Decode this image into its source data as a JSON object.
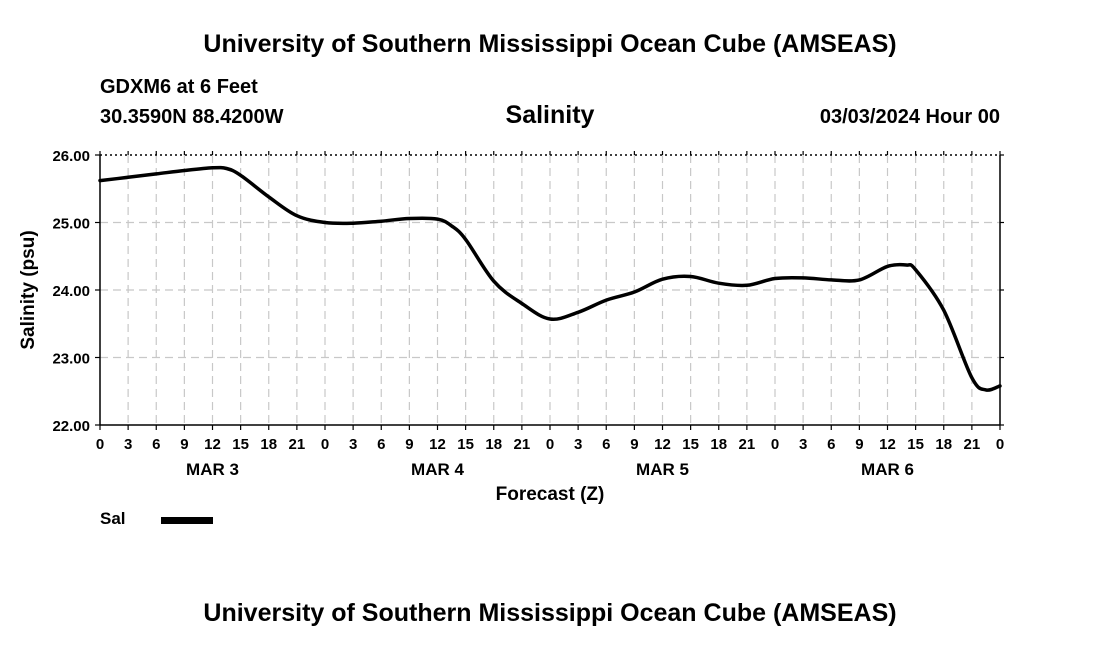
{
  "header": {
    "title_top": "University of Southern Mississippi Ocean Cube (AMSEAS)",
    "station": "GDXM6 at 6 Feet",
    "coords": "30.3590N  88.4200W",
    "subtitle": "Salinity",
    "datetime": "03/03/2024 Hour 00",
    "title_bottom": "University of Southern Mississippi Ocean Cube (AMSEAS)"
  },
  "legend": {
    "label": "Sal"
  },
  "chart_data": {
    "type": "line",
    "xlabel": "Forecast (Z)",
    "ylabel": "Salinity (psu)",
    "x_unit": "forecast hour",
    "xlim": [
      0,
      96
    ],
    "ylim": [
      22,
      26
    ],
    "grid": true,
    "yticks": [
      22,
      23,
      24,
      25,
      26
    ],
    "ytick_labels": [
      "22.00",
      "23.00",
      "24.00",
      "25.00",
      "26.00"
    ],
    "xtick_hours": [
      0,
      3,
      6,
      9,
      12,
      15,
      18,
      21,
      24,
      27,
      30,
      33,
      36,
      39,
      42,
      45,
      48,
      51,
      54,
      57,
      60,
      63,
      66,
      69,
      72,
      75,
      78,
      81,
      84,
      87,
      90,
      93,
      96
    ],
    "xtick_labels": [
      "0",
      "3",
      "6",
      "9",
      "12",
      "15",
      "18",
      "21",
      "0",
      "3",
      "6",
      "9",
      "12",
      "15",
      "18",
      "21",
      "0",
      "3",
      "6",
      "9",
      "12",
      "15",
      "18",
      "21",
      "0",
      "3",
      "6",
      "9",
      "12",
      "15",
      "18",
      "21",
      "0"
    ],
    "day_labels": [
      {
        "hour": 12,
        "label": "MAR 3"
      },
      {
        "hour": 36,
        "label": "MAR 4"
      },
      {
        "hour": 60,
        "label": "MAR 5"
      },
      {
        "hour": 84,
        "label": "MAR 6"
      }
    ],
    "series": [
      {
        "name": "Sal",
        "color": "#000000",
        "x": [
          0,
          3,
          6,
          9,
          12,
          13.5,
          15,
          18,
          21,
          24,
          27,
          30,
          33,
          36,
          37.5,
          39,
          42,
          45,
          48,
          51,
          54,
          57,
          60,
          63,
          66,
          69,
          72,
          75,
          78,
          81,
          84,
          86,
          87,
          90,
          93,
          94.5,
          96
        ],
        "values": [
          25.62,
          25.67,
          25.72,
          25.77,
          25.81,
          25.8,
          25.7,
          25.38,
          25.1,
          25.0,
          24.99,
          25.02,
          25.06,
          25.05,
          24.95,
          24.75,
          24.13,
          23.8,
          23.57,
          23.67,
          23.85,
          23.97,
          24.16,
          24.2,
          24.1,
          24.07,
          24.17,
          24.18,
          24.15,
          24.15,
          24.35,
          24.37,
          24.3,
          23.7,
          22.7,
          22.52,
          22.58
        ]
      }
    ]
  }
}
